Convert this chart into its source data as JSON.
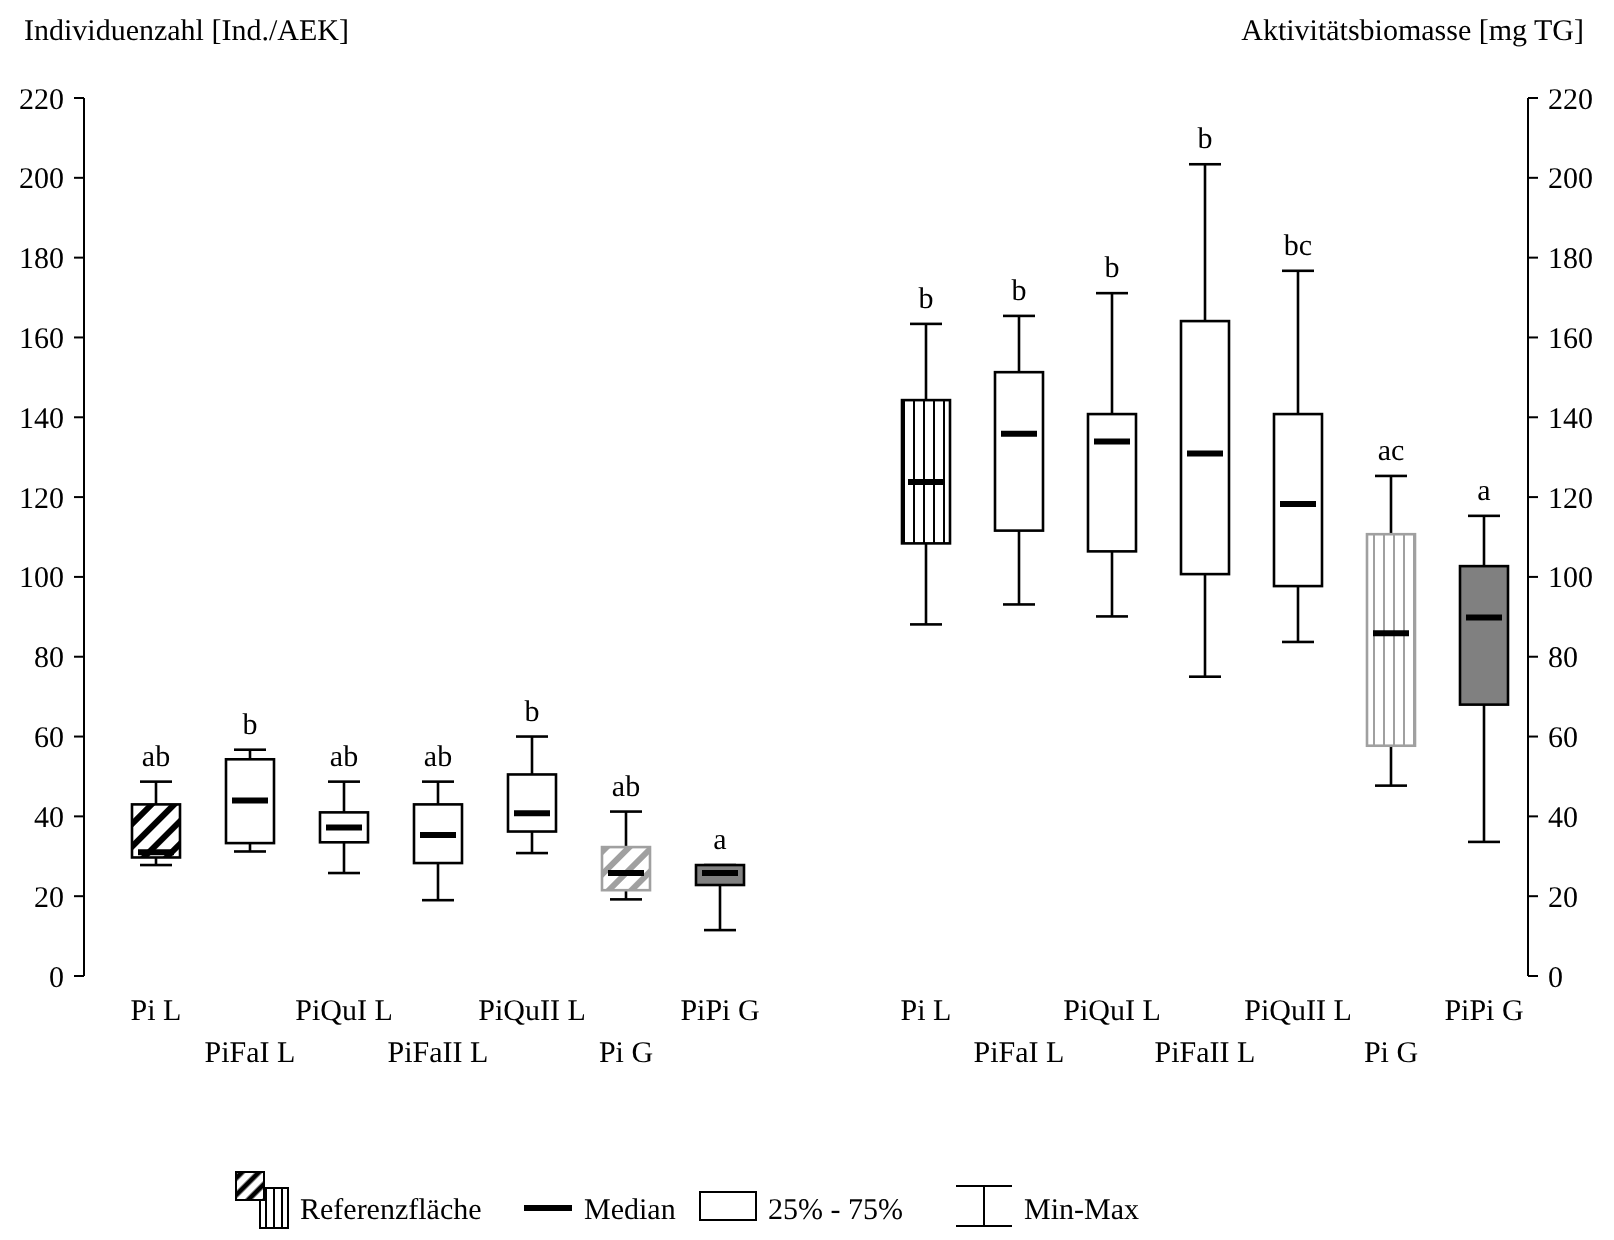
{
  "chart_data": [
    {
      "type": "box",
      "ylabel": "Individuenzahl [Ind./AEK]",
      "categories": [
        "Pi L",
        "PiFaI L",
        "PiQuI L",
        "PiFaII L",
        "PiQuII L",
        "Pi G",
        "PiPi G"
      ],
      "ylim": [
        0,
        220
      ],
      "yticks": [
        0,
        20,
        40,
        60,
        80,
        100,
        120,
        140,
        160,
        180,
        200,
        220
      ],
      "legend": "bottom",
      "series": [
        {
          "name": "Referenzfläche",
          "colors": [
            "#000000",
            null,
            null,
            null,
            null,
            "#a0a0a0",
            null
          ],
          "boxes": [
            {
              "low": 27.8,
              "q1": 29.7,
              "median": 31,
              "q3": 43,
              "high": 48.7
            },
            null,
            null,
            null,
            null,
            {
              "low": 19.2,
              "q1": 21.5,
              "median": 25.8,
              "q3": 32.3,
              "high": 41.2
            },
            null
          ]
        },
        {
          "color": "#ffffff",
          "boxes": [
            null,
            {
              "low": 31.2,
              "q1": 33.3,
              "median": 44,
              "q3": 54.3,
              "high": 56.7
            },
            {
              "low": 25.8,
              "q1": 33.5,
              "median": 37.2,
              "q3": 41,
              "high": 48.7
            },
            {
              "low": 19,
              "q1": 28.3,
              "median": 35.3,
              "q3": 43,
              "high": 48.7
            },
            {
              "low": 30.8,
              "q1": 36.2,
              "median": 40.8,
              "q3": 50.5,
              "high": 60
            },
            null,
            null
          ]
        },
        {
          "color": "#808080",
          "boxes": [
            null,
            null,
            null,
            null,
            null,
            null,
            {
              "low": 11.5,
              "q1": 22.8,
              "median": 25.8,
              "q3": 27.8,
              "high": 27.8
            }
          ]
        }
      ],
      "annotations": [
        {
          "text": "ab",
          "x": "Pi L",
          "y": 48.7
        },
        {
          "text": "b",
          "x": "PiFaI L",
          "y": 56.7
        },
        {
          "text": "ab",
          "x": "PiQuI L",
          "y": 48.7
        },
        {
          "text": "ab",
          "x": "PiFaII L",
          "y": 48.7
        },
        {
          "text": "b",
          "x": "PiQuII L",
          "y": 60
        },
        {
          "text": "ab",
          "x": "Pi G",
          "y": 41.2
        },
        {
          "text": "a",
          "x": "PiPi G",
          "y": 27.8
        },
        "Median",
        "25% - 75%",
        "Min-Max"
      ]
    },
    {
      "type": "box",
      "y2label": "Aktivitätsbiomasse [mg TG]",
      "categories": [
        "Pi L",
        "PiFaI L",
        "PiQuI L",
        "PiFaII L",
        "PiQuII L",
        "Pi G",
        "PiPi G"
      ],
      "y2lim": [
        0,
        220
      ],
      "y2ticks": [
        0,
        20,
        40,
        60,
        80,
        100,
        120,
        140,
        160,
        180,
        200,
        220
      ],
      "series": [
        {
          "axis": "y2",
          "colors": [
            "#000000",
            null,
            null,
            null,
            null,
            "#a0a0a0",
            null
          ],
          "boxes": [
            {
              "low": 88.1,
              "q1": 108.4,
              "median": 123.8,
              "q3": 144.3,
              "high": 163.4
            },
            null,
            null,
            null,
            null,
            {
              "low": 47.7,
              "q1": 57.7,
              "median": 85.9,
              "q3": 110.7,
              "high": 125.3
            },
            null
          ]
        },
        {
          "axis": "y2",
          "color": "#ffffff",
          "boxes": [
            null,
            {
              "low": 93.1,
              "q1": 111.6,
              "median": 135.9,
              "q3": 151.3,
              "high": 165.4
            },
            {
              "low": 90.1,
              "q1": 106.4,
              "median": 133.9,
              "q3": 140.8,
              "high": 171.1
            },
            {
              "low": 75,
              "q1": 100.7,
              "median": 130.9,
              "q3": 164.1,
              "high": 203.4
            },
            {
              "low": 83.7,
              "q1": 97.7,
              "median": 118.3,
              "q3": 140.8,
              "high": 176.7
            },
            null,
            null
          ]
        },
        {
          "axis": "y2",
          "color": "#808080",
          "boxes": [
            null,
            null,
            null,
            null,
            null,
            null,
            {
              "low": 33.6,
              "q1": 68,
              "median": 89.8,
              "q3": 102.7,
              "high": 115.3
            }
          ]
        }
      ],
      "annotations": [
        "b",
        "b",
        "b",
        "b",
        "bc",
        "ac",
        "a"
      ]
    }
  ]
}
